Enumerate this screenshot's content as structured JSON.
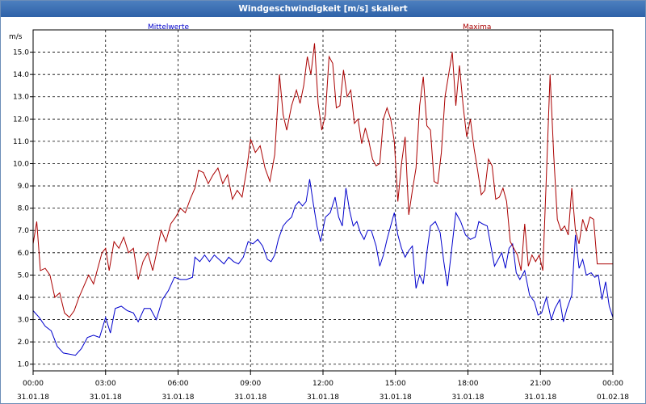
{
  "window": {
    "title": "Windgeschwindigkeit [m/s] skaliert"
  },
  "colors": {
    "mean": "#0000cc",
    "max": "#aa0000",
    "grid": "#000000"
  },
  "chart_data": {
    "type": "line",
    "title": "Windgeschwindigkeit [m/s] skaliert",
    "ylabel": "m/s",
    "ylim": [
      0.7,
      16.0
    ],
    "yticks": [
      "1.0",
      "2.0",
      "3.0",
      "4.0",
      "5.0",
      "6.0",
      "7.0",
      "8.0",
      "9.0",
      "10.0",
      "11.0",
      "12.0",
      "13.0",
      "14.0",
      "15.0"
    ],
    "xlim_hours": [
      0,
      24
    ],
    "xticks": [
      {
        "time": "00:00",
        "date": "31.01.18"
      },
      {
        "time": "03:00",
        "date": "31.01.18"
      },
      {
        "time": "06:00",
        "date": "31.01.18"
      },
      {
        "time": "09:00",
        "date": "31.01.18"
      },
      {
        "time": "12:00",
        "date": "31.01.18"
      },
      {
        "time": "15:00",
        "date": "31.01.18"
      },
      {
        "time": "18:00",
        "date": "31.01.18"
      },
      {
        "time": "21:00",
        "date": "31.01.18"
      },
      {
        "time": "00:00",
        "date": "01.02.18"
      }
    ],
    "legend_placement": "top",
    "grid": true,
    "series": [
      {
        "name": "Mittelwerte",
        "color": "#0000cc",
        "points": [
          [
            0.0,
            3.4
          ],
          [
            0.25,
            3.1
          ],
          [
            0.5,
            2.7
          ],
          [
            0.75,
            2.5
          ],
          [
            1.0,
            1.8
          ],
          [
            1.25,
            1.5
          ],
          [
            1.5,
            1.45
          ],
          [
            1.75,
            1.4
          ],
          [
            2.0,
            1.7
          ],
          [
            2.25,
            2.2
          ],
          [
            2.5,
            2.3
          ],
          [
            2.75,
            2.2
          ],
          [
            3.0,
            3.1
          ],
          [
            3.2,
            2.4
          ],
          [
            3.4,
            3.5
          ],
          [
            3.65,
            3.6
          ],
          [
            3.9,
            3.4
          ],
          [
            4.15,
            3.3
          ],
          [
            4.35,
            2.9
          ],
          [
            4.6,
            3.5
          ],
          [
            4.85,
            3.5
          ],
          [
            5.1,
            3.0
          ],
          [
            5.35,
            3.9
          ],
          [
            5.6,
            4.3
          ],
          [
            5.85,
            4.9
          ],
          [
            6.1,
            4.8
          ],
          [
            6.35,
            4.8
          ],
          [
            6.6,
            4.9
          ],
          [
            6.7,
            5.8
          ],
          [
            6.9,
            5.6
          ],
          [
            7.1,
            5.9
          ],
          [
            7.3,
            5.6
          ],
          [
            7.5,
            5.9
          ],
          [
            7.7,
            5.7
          ],
          [
            7.9,
            5.5
          ],
          [
            8.1,
            5.8
          ],
          [
            8.3,
            5.6
          ],
          [
            8.5,
            5.5
          ],
          [
            8.7,
            5.8
          ],
          [
            8.9,
            6.5
          ],
          [
            9.1,
            6.4
          ],
          [
            9.3,
            6.6
          ],
          [
            9.5,
            6.3
          ],
          [
            9.7,
            5.7
          ],
          [
            9.85,
            5.6
          ],
          [
            10.0,
            5.9
          ],
          [
            10.15,
            6.6
          ],
          [
            10.35,
            7.2
          ],
          [
            10.5,
            7.4
          ],
          [
            10.7,
            7.6
          ],
          [
            10.85,
            8.1
          ],
          [
            11.0,
            8.3
          ],
          [
            11.15,
            8.1
          ],
          [
            11.3,
            8.3
          ],
          [
            11.45,
            9.3
          ],
          [
            11.6,
            8.2
          ],
          [
            11.75,
            7.2
          ],
          [
            11.9,
            6.5
          ],
          [
            12.1,
            7.6
          ],
          [
            12.3,
            7.8
          ],
          [
            12.5,
            8.5
          ],
          [
            12.65,
            7.6
          ],
          [
            12.8,
            7.2
          ],
          [
            12.95,
            8.9
          ],
          [
            13.1,
            7.9
          ],
          [
            13.25,
            7.2
          ],
          [
            13.4,
            7.4
          ],
          [
            13.55,
            6.9
          ],
          [
            13.7,
            6.6
          ],
          [
            13.85,
            7.0
          ],
          [
            14.0,
            7.0
          ],
          [
            14.2,
            6.3
          ],
          [
            14.35,
            5.4
          ],
          [
            14.5,
            5.9
          ],
          [
            14.65,
            6.6
          ],
          [
            14.8,
            7.2
          ],
          [
            14.95,
            7.8
          ],
          [
            15.1,
            6.8
          ],
          [
            15.25,
            6.2
          ],
          [
            15.4,
            5.8
          ],
          [
            15.55,
            6.1
          ],
          [
            15.7,
            6.3
          ],
          [
            15.85,
            4.4
          ],
          [
            16.0,
            5.0
          ],
          [
            16.15,
            4.6
          ],
          [
            16.3,
            6.0
          ],
          [
            16.45,
            7.2
          ],
          [
            16.65,
            7.4
          ],
          [
            16.85,
            6.9
          ],
          [
            17.0,
            5.6
          ],
          [
            17.15,
            4.5
          ],
          [
            17.35,
            6.4
          ],
          [
            17.5,
            7.8
          ],
          [
            17.7,
            7.4
          ],
          [
            17.9,
            6.8
          ],
          [
            18.1,
            6.6
          ],
          [
            18.3,
            6.7
          ],
          [
            18.45,
            7.4
          ],
          [
            18.6,
            7.3
          ],
          [
            18.8,
            7.2
          ],
          [
            18.95,
            6.3
          ],
          [
            19.1,
            5.4
          ],
          [
            19.25,
            5.7
          ],
          [
            19.4,
            6.0
          ],
          [
            19.55,
            5.3
          ],
          [
            19.7,
            6.2
          ],
          [
            19.85,
            6.4
          ],
          [
            20.0,
            5.1
          ],
          [
            20.15,
            4.8
          ],
          [
            20.35,
            5.2
          ],
          [
            20.55,
            4.1
          ],
          [
            20.75,
            3.8
          ],
          [
            20.9,
            3.2
          ],
          [
            21.05,
            3.3
          ],
          [
            21.25,
            4.0
          ],
          [
            21.45,
            3.0
          ],
          [
            21.6,
            3.5
          ],
          [
            21.8,
            3.9
          ],
          [
            21.95,
            2.9
          ],
          [
            22.1,
            3.5
          ],
          [
            22.3,
            4.1
          ],
          [
            22.45,
            6.8
          ],
          [
            22.6,
            5.3
          ],
          [
            22.75,
            5.7
          ],
          [
            22.9,
            5.0
          ],
          [
            23.1,
            5.1
          ],
          [
            23.25,
            4.9
          ],
          [
            23.4,
            5.0
          ],
          [
            23.55,
            3.9
          ],
          [
            23.7,
            4.7
          ],
          [
            23.85,
            3.6
          ],
          [
            24.0,
            3.1
          ]
        ]
      },
      {
        "name": "Maxima",
        "color": "#aa0000",
        "points": [
          [
            0.0,
            6.4
          ],
          [
            0.15,
            7.4
          ],
          [
            0.3,
            5.2
          ],
          [
            0.5,
            5.3
          ],
          [
            0.7,
            5.0
          ],
          [
            0.9,
            4.0
          ],
          [
            1.1,
            4.2
          ],
          [
            1.3,
            3.3
          ],
          [
            1.5,
            3.1
          ],
          [
            1.7,
            3.4
          ],
          [
            1.9,
            4.0
          ],
          [
            2.1,
            4.5
          ],
          [
            2.3,
            5.0
          ],
          [
            2.5,
            4.6
          ],
          [
            2.7,
            5.4
          ],
          [
            2.85,
            6.0
          ],
          [
            3.0,
            6.2
          ],
          [
            3.15,
            5.2
          ],
          [
            3.35,
            6.5
          ],
          [
            3.55,
            6.2
          ],
          [
            3.75,
            6.7
          ],
          [
            3.95,
            6.0
          ],
          [
            4.15,
            6.2
          ],
          [
            4.35,
            4.8
          ],
          [
            4.55,
            5.6
          ],
          [
            4.75,
            6.0
          ],
          [
            4.95,
            5.2
          ],
          [
            5.15,
            6.2
          ],
          [
            5.3,
            7.0
          ],
          [
            5.5,
            6.5
          ],
          [
            5.7,
            7.3
          ],
          [
            5.9,
            7.6
          ],
          [
            6.1,
            8.0
          ],
          [
            6.3,
            7.8
          ],
          [
            6.5,
            8.4
          ],
          [
            6.7,
            8.9
          ],
          [
            6.85,
            9.7
          ],
          [
            7.05,
            9.6
          ],
          [
            7.25,
            9.1
          ],
          [
            7.45,
            9.5
          ],
          [
            7.65,
            9.8
          ],
          [
            7.85,
            9.1
          ],
          [
            8.05,
            9.5
          ],
          [
            8.25,
            8.4
          ],
          [
            8.45,
            8.8
          ],
          [
            8.65,
            8.5
          ],
          [
            8.85,
            9.8
          ],
          [
            9.0,
            11.1
          ],
          [
            9.2,
            10.5
          ],
          [
            9.4,
            10.8
          ],
          [
            9.6,
            9.8
          ],
          [
            9.8,
            9.2
          ],
          [
            10.0,
            10.4
          ],
          [
            10.2,
            14.0
          ],
          [
            10.35,
            12.2
          ],
          [
            10.5,
            11.5
          ],
          [
            10.7,
            12.6
          ],
          [
            10.9,
            13.3
          ],
          [
            11.05,
            12.7
          ],
          [
            11.2,
            13.5
          ],
          [
            11.35,
            14.8
          ],
          [
            11.5,
            14.0
          ],
          [
            11.65,
            15.4
          ],
          [
            11.8,
            12.7
          ],
          [
            11.95,
            11.5
          ],
          [
            12.1,
            12.2
          ],
          [
            12.25,
            14.8
          ],
          [
            12.4,
            14.5
          ],
          [
            12.55,
            12.5
          ],
          [
            12.7,
            12.6
          ],
          [
            12.85,
            14.2
          ],
          [
            13.0,
            13.0
          ],
          [
            13.15,
            13.3
          ],
          [
            13.3,
            11.8
          ],
          [
            13.45,
            12.0
          ],
          [
            13.6,
            10.9
          ],
          [
            13.75,
            11.6
          ],
          [
            13.9,
            11.0
          ],
          [
            14.05,
            10.2
          ],
          [
            14.2,
            9.9
          ],
          [
            14.35,
            10.0
          ],
          [
            14.5,
            12.0
          ],
          [
            14.65,
            12.5
          ],
          [
            14.8,
            12.0
          ],
          [
            14.95,
            11.0
          ],
          [
            15.1,
            8.3
          ],
          [
            15.25,
            10.0
          ],
          [
            15.4,
            11.2
          ],
          [
            15.55,
            7.7
          ],
          [
            15.7,
            8.8
          ],
          [
            15.85,
            9.8
          ],
          [
            16.0,
            12.6
          ],
          [
            16.15,
            13.9
          ],
          [
            16.3,
            11.7
          ],
          [
            16.45,
            11.5
          ],
          [
            16.6,
            9.2
          ],
          [
            16.75,
            9.1
          ],
          [
            16.9,
            10.5
          ],
          [
            17.05,
            13.0
          ],
          [
            17.2,
            14.0
          ],
          [
            17.35,
            15.0
          ],
          [
            17.5,
            12.6
          ],
          [
            17.65,
            14.4
          ],
          [
            17.8,
            12.6
          ],
          [
            17.95,
            11.2
          ],
          [
            18.1,
            12.0
          ],
          [
            18.25,
            10.7
          ],
          [
            18.4,
            9.7
          ],
          [
            18.55,
            8.6
          ],
          [
            18.7,
            8.8
          ],
          [
            18.85,
            10.2
          ],
          [
            19.0,
            9.9
          ],
          [
            19.15,
            8.4
          ],
          [
            19.3,
            8.5
          ],
          [
            19.45,
            8.9
          ],
          [
            19.6,
            8.3
          ],
          [
            19.75,
            6.5
          ],
          [
            19.9,
            6.2
          ],
          [
            20.05,
            5.9
          ],
          [
            20.2,
            5.2
          ],
          [
            20.35,
            7.3
          ],
          [
            20.5,
            5.4
          ],
          [
            20.65,
            5.9
          ],
          [
            20.8,
            5.6
          ],
          [
            20.95,
            5.9
          ],
          [
            21.1,
            5.2
          ],
          [
            21.25,
            9.5
          ],
          [
            21.4,
            14.0
          ],
          [
            21.55,
            10.4
          ],
          [
            21.7,
            7.5
          ],
          [
            21.85,
            7.0
          ],
          [
            22.0,
            7.2
          ],
          [
            22.15,
            6.8
          ],
          [
            22.3,
            8.9
          ],
          [
            22.45,
            7.0
          ],
          [
            22.6,
            6.4
          ],
          [
            22.75,
            7.5
          ],
          [
            22.9,
            7.0
          ],
          [
            23.05,
            7.6
          ],
          [
            23.2,
            7.5
          ],
          [
            23.35,
            5.5
          ],
          [
            24.0,
            5.5
          ]
        ]
      }
    ]
  }
}
